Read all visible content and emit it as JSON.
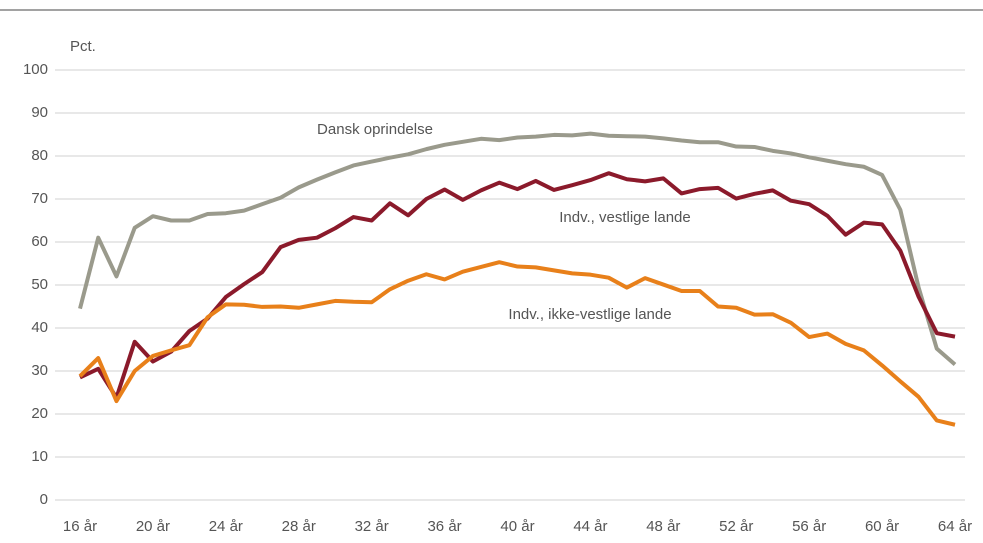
{
  "chart_data": {
    "type": "line",
    "y_label": "Pct.",
    "categories": [
      "16 år",
      null,
      null,
      null,
      "20 år",
      null,
      null,
      null,
      "24 år",
      null,
      null,
      null,
      "28 år",
      null,
      null,
      null,
      "32 år",
      null,
      null,
      null,
      "36 år",
      null,
      null,
      null,
      "40 år",
      null,
      null,
      null,
      "44 år",
      null,
      null,
      null,
      "48 år",
      null,
      null,
      null,
      "52 år",
      null,
      null,
      null,
      "56 år",
      null,
      null,
      null,
      "60 år",
      null,
      null,
      null,
      "64 år"
    ],
    "series": [
      {
        "name": "Dansk oprindelse",
        "color": "#9a9a8c",
        "values": [
          44.5,
          61,
          52,
          63.3,
          66,
          65,
          65,
          66.5,
          66.7,
          67.3,
          68.8,
          70.3,
          72.7,
          74.5,
          76.2,
          77.8,
          78.7,
          79.6,
          80.4,
          81.6,
          82.6,
          83.3,
          84,
          83.7,
          84.3,
          84.5,
          84.9,
          84.8,
          85.2,
          84.7,
          84.6,
          84.5,
          84.1,
          83.6,
          83.2,
          83.2,
          82.2,
          82.1,
          81.2,
          80.6,
          79.7,
          78.9,
          78.1,
          77.5,
          75.6,
          67.5,
          49.5,
          35.2,
          31.5
        ]
      },
      {
        "name": "Indv., vestlige lande",
        "color": "#8b1a2b",
        "values": [
          28.5,
          30.5,
          23.8,
          36.8,
          32.2,
          34.5,
          39.3,
          42.2,
          47.2,
          50.2,
          53,
          58.8,
          60.5,
          61,
          63.2,
          65.8,
          65,
          69,
          66.2,
          70,
          72.2,
          69.8,
          72,
          73.8,
          72.3,
          74.2,
          72.1,
          73.2,
          74.4,
          76,
          74.6,
          74.1,
          74.8,
          71.3,
          72.3,
          72.6,
          70.1,
          71.2,
          72,
          69.6,
          68.8,
          66.1,
          61.7,
          64.5,
          64.1,
          58,
          47.3,
          38.8,
          38
        ]
      },
      {
        "name": "Indv., ikke-vestlige lande",
        "color": "#e8801a",
        "values": [
          28.8,
          33,
          23,
          30,
          33.5,
          34.8,
          36,
          42.5,
          45.5,
          45.4,
          44.9,
          45,
          44.7,
          45.5,
          46.3,
          46.1,
          46,
          49,
          51,
          52.5,
          51.3,
          53.1,
          54.2,
          55.3,
          54.3,
          54.1,
          53.4,
          52.7,
          52.4,
          51.7,
          49.4,
          51.6,
          50.1,
          48.6,
          48.6,
          45,
          44.7,
          43.1,
          43.2,
          41.2,
          37.9,
          38.7,
          36.3,
          34.8,
          31.3,
          27.6,
          24,
          18.5,
          17.5
        ]
      }
    ],
    "ylim": [
      0,
      100
    ],
    "yticks": [
      0,
      10,
      20,
      30,
      40,
      50,
      60,
      70,
      80,
      90,
      100
    ],
    "grid": true
  }
}
